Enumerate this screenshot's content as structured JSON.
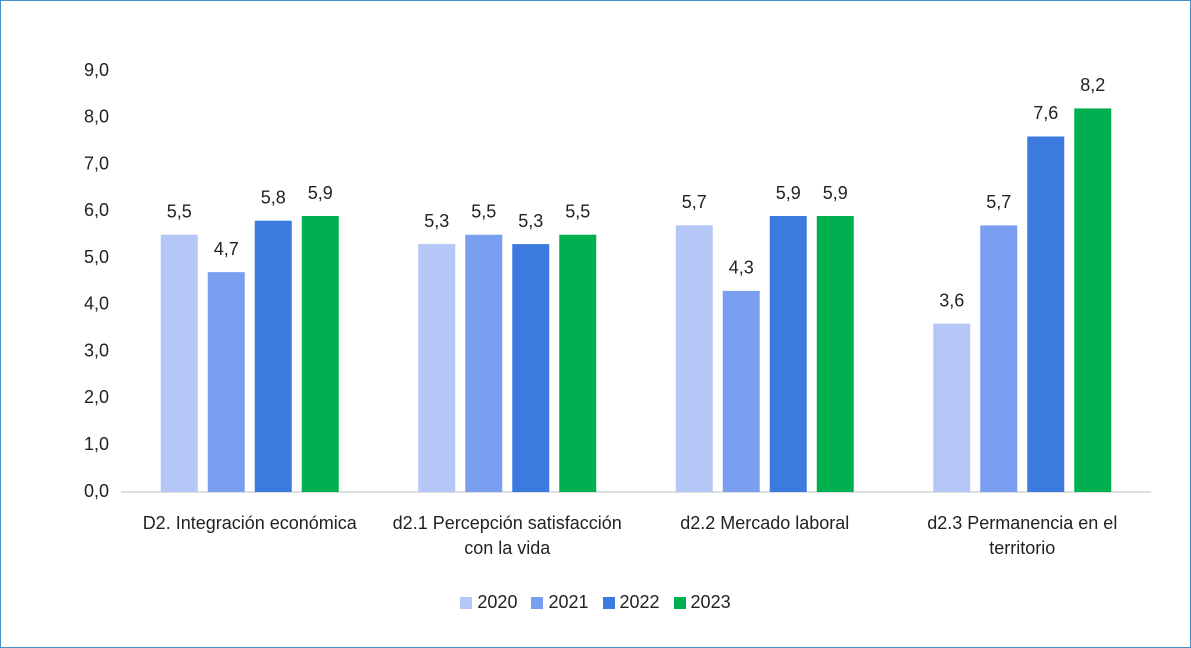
{
  "chart_data": {
    "type": "bar",
    "categories": [
      "D2. Integración económica",
      "d2.1 Percepción satisfacción con la vida",
      "d2.2 Mercado laboral",
      "d2.3 Permanencia en el territorio"
    ],
    "series": [
      {
        "name": "2020",
        "color": "#b4c7f7",
        "values": [
          5.5,
          5.3,
          5.7,
          3.6
        ],
        "value_labels": [
          "5,5",
          "5,3",
          "5,7",
          "3,6"
        ]
      },
      {
        "name": "2021",
        "color": "#7b9ff0",
        "values": [
          4.7,
          5.5,
          4.3,
          5.7
        ],
        "value_labels": [
          "4,7",
          "5,5",
          "4,3",
          "5,7"
        ]
      },
      {
        "name": "2022",
        "color": "#3d7ae0",
        "values": [
          5.8,
          5.3,
          5.9,
          7.6
        ],
        "value_labels": [
          "5,8",
          "5,3",
          "5,9",
          "7,6"
        ]
      },
      {
        "name": "2023",
        "color": "#00b050",
        "values": [
          5.9,
          5.5,
          5.9,
          8.2
        ],
        "value_labels": [
          "5,9",
          "5,5",
          "5,9",
          "8,2"
        ]
      }
    ],
    "ylim": [
      0,
      9
    ],
    "yticks": [
      {
        "value": 0,
        "label": "0,0"
      },
      {
        "value": 1,
        "label": "1,0"
      },
      {
        "value": 2,
        "label": "2,0"
      },
      {
        "value": 3,
        "label": "3,0"
      },
      {
        "value": 4,
        "label": "4,0"
      },
      {
        "value": 5,
        "label": "5,0"
      },
      {
        "value": 6,
        "label": "6,0"
      },
      {
        "value": 7,
        "label": "7,0"
      },
      {
        "value": 8,
        "label": "8,0"
      },
      {
        "value": 9,
        "label": "9,0"
      }
    ],
    "grid": false
  }
}
